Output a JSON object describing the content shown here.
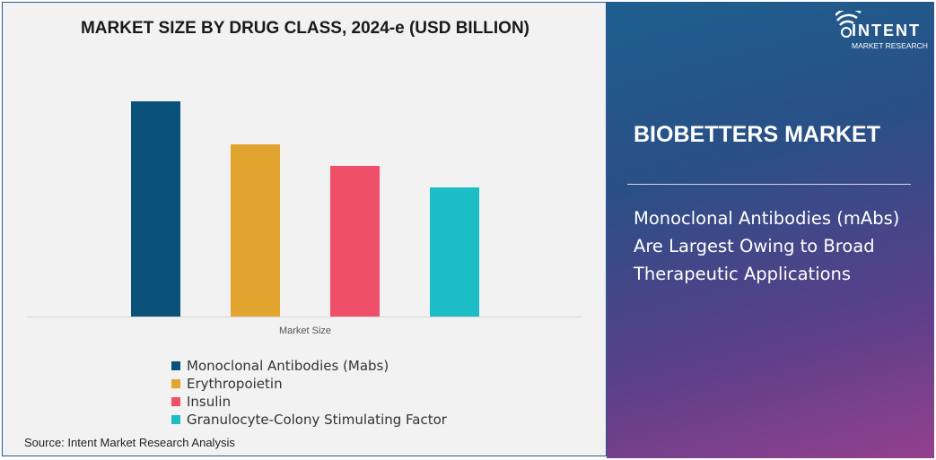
{
  "chart_data": {
    "type": "bar",
    "title": "MARKET SIZE BY DRUG CLASS, 2024-e (USD BILLION)",
    "xlabel": "Market Size",
    "ylabel": "",
    "categories": [
      "Market Size"
    ],
    "series": [
      {
        "name": "Monoclonal Antibodies (Mabs)",
        "values": [
          1.0
        ],
        "color": "#0b527b"
      },
      {
        "name": "Erythropoietin",
        "values": [
          0.8
        ],
        "color": "#e1a52f"
      },
      {
        "name": "Insulin",
        "values": [
          0.7
        ],
        "color": "#ef4f68"
      },
      {
        "name": "Granulocyte-Colony Stimulating Factor",
        "values": [
          0.6
        ],
        "color": "#1cbdc6"
      }
    ],
    "ylim": [
      0,
      1
    ],
    "grid": false,
    "legend": "bottom"
  },
  "source": "Source: Intent Market Research Analysis",
  "side_panel": {
    "title": "BIOBETTERS MARKET",
    "text": "Monoclonal Antibodies (mAbs) Are Largest Owing to Broad Therapeutic Applications",
    "logo_name": "INTENT",
    "logo_sub": "MARKET RESEARCH"
  }
}
